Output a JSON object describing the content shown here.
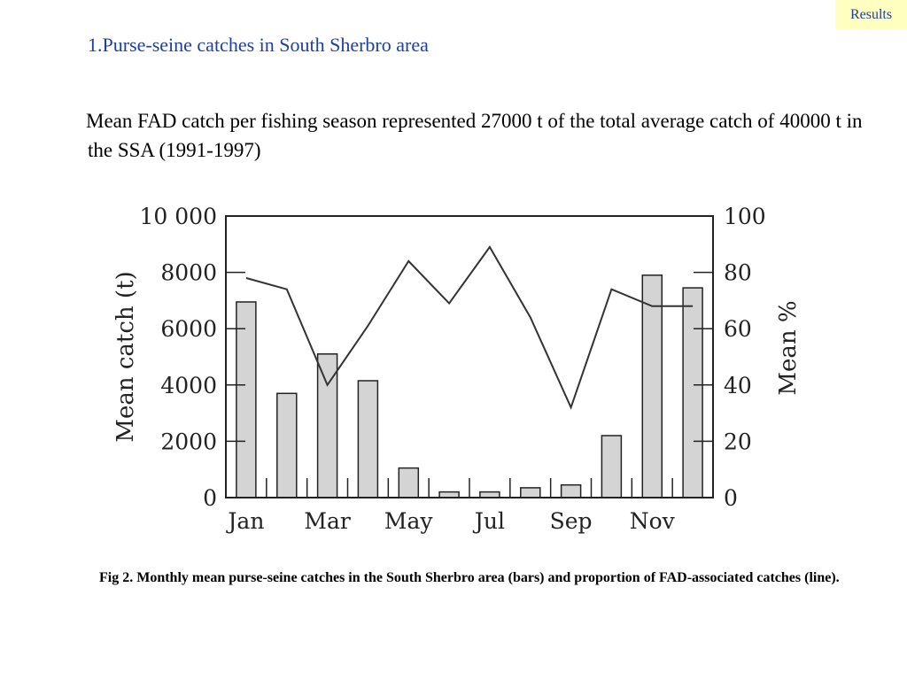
{
  "header": {
    "section_tag": "Results",
    "title": "1.Purse-seine catches in South Sherbro area"
  },
  "intro": {
    "text": "Mean FAD catch per fishing season represented 27000 t of the total average catch of 40000 t in the SSA (1991-1997)"
  },
  "caption": {
    "text": "Fig 2. Monthly mean purse-seine catches in the South  Sherbro area (bars) and proportion of FAD-associated catches  (line)."
  },
  "chart_data": {
    "type": "bar",
    "title": "",
    "xlabel": "",
    "ylabel": "Mean catch (t)",
    "y2label": "Mean %",
    "categories": [
      "Jan",
      "Feb",
      "Mar",
      "Apr",
      "May",
      "Jun",
      "Jul",
      "Aug",
      "Sep",
      "Oct",
      "Nov",
      "Dec"
    ],
    "x_tick_labels": [
      "Jan",
      "Mar",
      "May",
      "Jul",
      "Sep",
      "Nov"
    ],
    "ylim": [
      0,
      10000
    ],
    "y_ticks": [
      "0",
      "2000",
      "4000",
      "6000",
      "8000",
      "10 000"
    ],
    "y2lim": [
      0,
      100
    ],
    "y2_ticks": [
      "0",
      "20",
      "40",
      "60",
      "80",
      "100"
    ],
    "series": [
      {
        "type": "bar",
        "axis": "left",
        "values": [
          6950,
          3700,
          5100,
          4150,
          1050,
          200,
          200,
          350,
          450,
          2200,
          7900,
          7450
        ],
        "color": "#d4d4d4"
      },
      {
        "type": "line",
        "axis": "right",
        "values": [
          78,
          74,
          40,
          61,
          84,
          69,
          89,
          64,
          32,
          74,
          68,
          68
        ],
        "color": "#333333"
      }
    ],
    "grid": false,
    "legend": "none"
  }
}
